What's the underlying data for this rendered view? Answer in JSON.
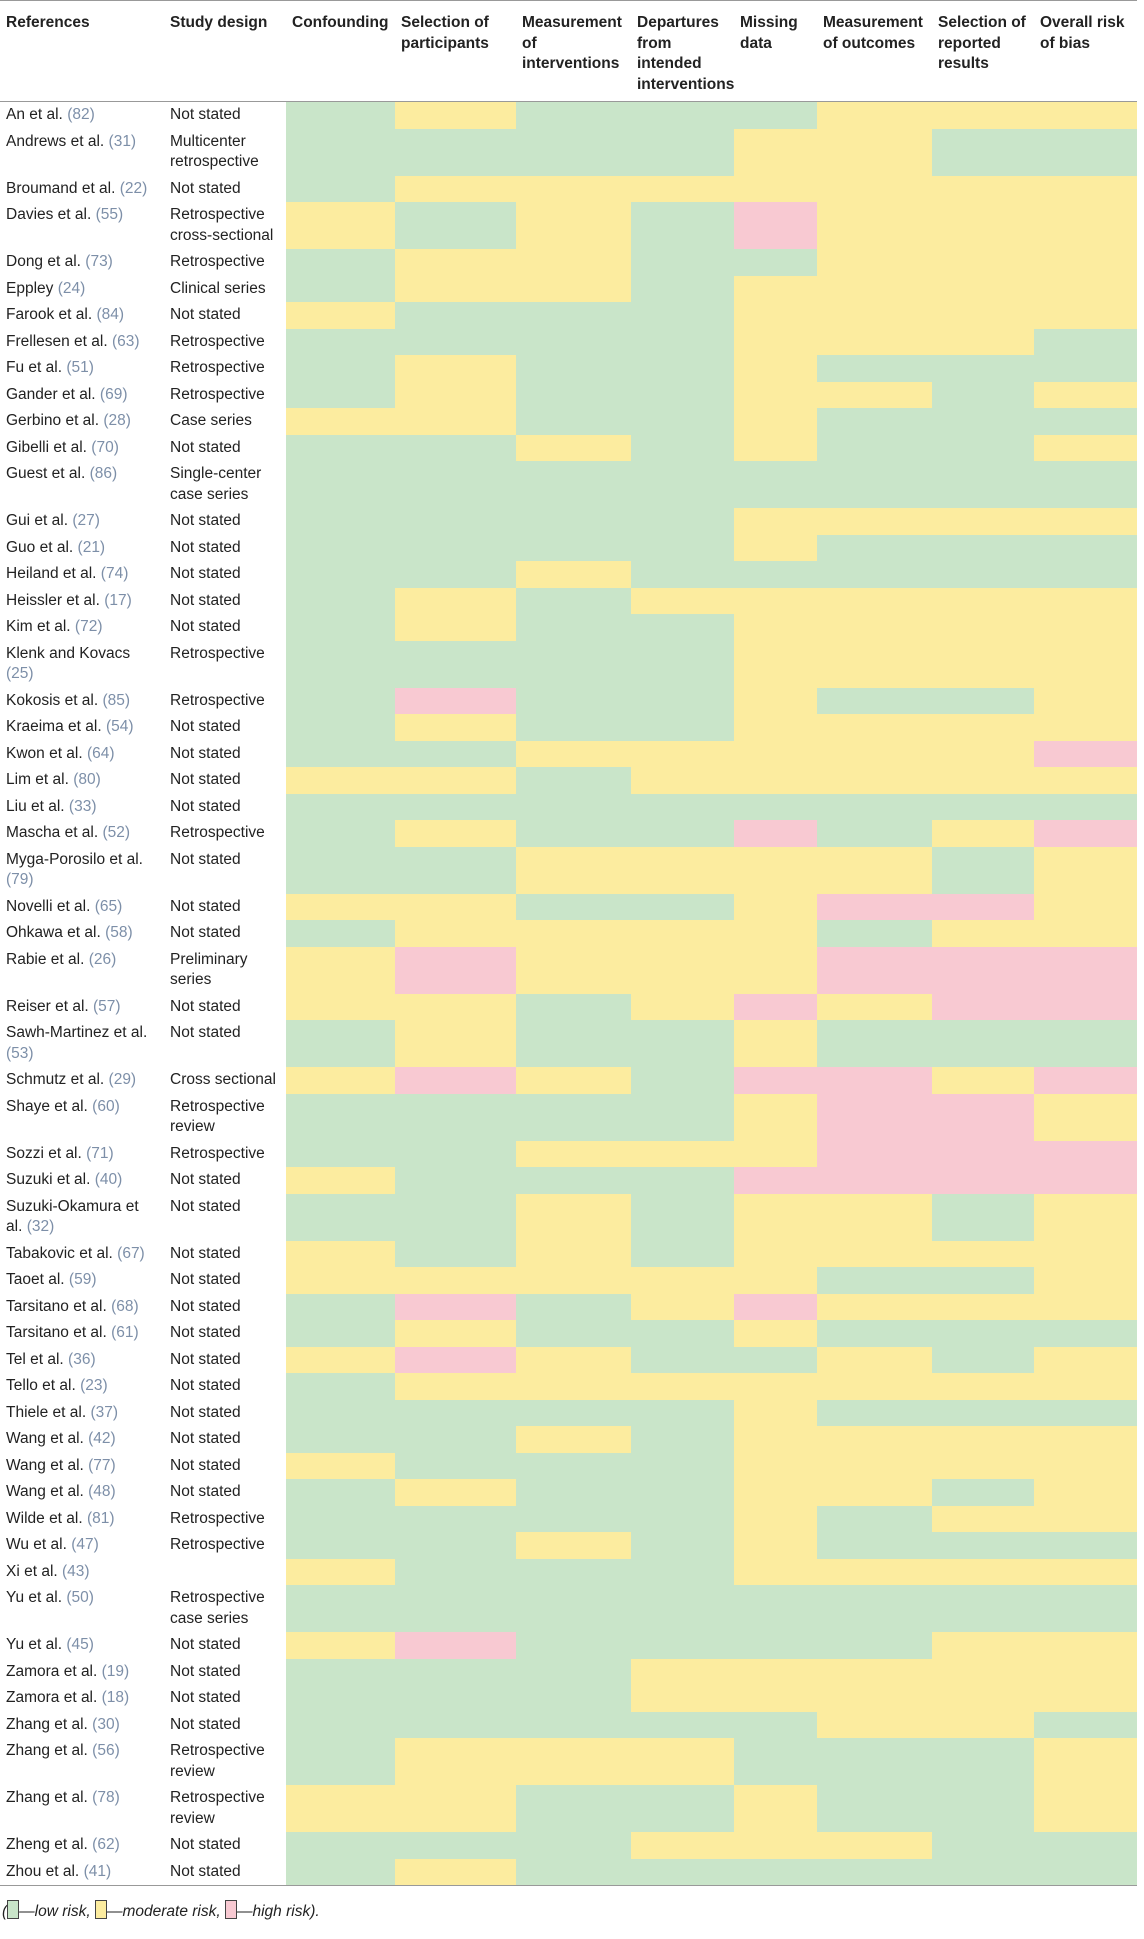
{
  "table": {
    "header": [
      "References",
      "Study design",
      "Confounding",
      "Selection of participants",
      "Measurement of interventions",
      "Departures from intended interventions",
      "Missing data",
      "Measurement of outcomes",
      "Selection of reported results",
      "Overall risk of bias"
    ],
    "risk_colors": [
      "#c9e5c9",
      "#fcec9f",
      "#f8c9d2"
    ],
    "rows": [
      {
        "ref": "An et al.",
        "cite": "(82)",
        "design": "Not stated",
        "risk": [
          0,
          1,
          0,
          0,
          0,
          1,
          1,
          1
        ]
      },
      {
        "ref": "Andrews et al.",
        "cite": "(31)",
        "design": "Multicenter retrospective",
        "risk": [
          0,
          0,
          0,
          0,
          1,
          1,
          0,
          0
        ]
      },
      {
        "ref": "Broumand et al.",
        "cite": "(22)",
        "design": "Not stated",
        "risk": [
          0,
          1,
          1,
          1,
          1,
          1,
          1,
          1
        ]
      },
      {
        "ref": "Davies et al.",
        "cite": "(55)",
        "design": "Retrospective cross-sectional",
        "risk": [
          1,
          0,
          1,
          0,
          2,
          1,
          1,
          1
        ]
      },
      {
        "ref": "Dong et al.",
        "cite": "(73)",
        "design": "Retrospective",
        "risk": [
          0,
          1,
          1,
          0,
          0,
          1,
          1,
          1
        ]
      },
      {
        "ref": "Eppley",
        "cite": "(24)",
        "design": "Clinical series",
        "risk": [
          0,
          1,
          1,
          0,
          1,
          1,
          1,
          1
        ]
      },
      {
        "ref": "Farook et al.",
        "cite": "(84)",
        "design": "Not stated",
        "risk": [
          1,
          0,
          0,
          0,
          1,
          1,
          1,
          1
        ]
      },
      {
        "ref": "Frellesen et al.",
        "cite": "(63)",
        "design": "Retrospective",
        "risk": [
          0,
          0,
          0,
          0,
          1,
          1,
          1,
          0
        ]
      },
      {
        "ref": "Fu et al.",
        "cite": "(51)",
        "design": "Retrospective",
        "risk": [
          0,
          1,
          0,
          0,
          1,
          0,
          0,
          0
        ]
      },
      {
        "ref": "Gander et al.",
        "cite": "(69)",
        "design": "Retrospective",
        "risk": [
          0,
          1,
          0,
          0,
          1,
          1,
          0,
          1
        ]
      },
      {
        "ref": "Gerbino et al.",
        "cite": "(28)",
        "design": "Case series",
        "risk": [
          1,
          1,
          0,
          0,
          1,
          0,
          0,
          0
        ]
      },
      {
        "ref": "Gibelli et al.",
        "cite": "(70)",
        "design": "Not stated",
        "risk": [
          0,
          0,
          1,
          0,
          1,
          0,
          0,
          1
        ]
      },
      {
        "ref": "Guest et al.",
        "cite": "(86)",
        "design": "Single-center case series",
        "risk": [
          0,
          0,
          0,
          0,
          0,
          0,
          0,
          0
        ]
      },
      {
        "ref": "Gui et al.",
        "cite": "(27)",
        "design": "Not stated",
        "risk": [
          0,
          0,
          0,
          0,
          1,
          1,
          1,
          1
        ]
      },
      {
        "ref": "Guo et al.",
        "cite": "(21)",
        "design": "Not stated",
        "risk": [
          0,
          0,
          0,
          0,
          1,
          0,
          0,
          0
        ]
      },
      {
        "ref": "Heiland et al.",
        "cite": "(74)",
        "design": "Not stated",
        "risk": [
          0,
          0,
          1,
          0,
          0,
          0,
          0,
          0
        ]
      },
      {
        "ref": "Heissler et al.",
        "cite": "(17)",
        "design": "Not stated",
        "risk": [
          0,
          1,
          0,
          1,
          1,
          1,
          1,
          1
        ]
      },
      {
        "ref": "Kim et al.",
        "cite": "(72)",
        "design": "Not stated",
        "risk": [
          0,
          1,
          0,
          0,
          1,
          1,
          1,
          1
        ]
      },
      {
        "ref": "Klenk and Kovacs",
        "cite": "(25)",
        "design": "Retrospective",
        "risk": [
          0,
          0,
          0,
          0,
          1,
          1,
          1,
          1
        ]
      },
      {
        "ref": "Kokosis et al.",
        "cite": "(85)",
        "design": "Retrospective",
        "risk": [
          0,
          2,
          0,
          0,
          1,
          0,
          0,
          1
        ]
      },
      {
        "ref": "Kraeima et al.",
        "cite": "(54)",
        "design": "Not stated",
        "risk": [
          0,
          1,
          0,
          0,
          1,
          1,
          1,
          1
        ]
      },
      {
        "ref": "Kwon et al.",
        "cite": "(64)",
        "design": "Not stated",
        "risk": [
          0,
          0,
          1,
          1,
          1,
          1,
          1,
          2
        ]
      },
      {
        "ref": "Lim et al.",
        "cite": "(80)",
        "design": "Not stated",
        "risk": [
          1,
          1,
          0,
          1,
          1,
          1,
          1,
          1
        ]
      },
      {
        "ref": "Liu et al.",
        "cite": "(33)",
        "design": "Not stated",
        "risk": [
          0,
          0,
          0,
          0,
          0,
          0,
          0,
          0
        ]
      },
      {
        "ref": "Mascha et al.",
        "cite": "(52)",
        "design": "Retrospective",
        "risk": [
          0,
          1,
          0,
          0,
          2,
          0,
          1,
          2
        ]
      },
      {
        "ref": "Myga-Porosilo et al.",
        "cite": "(79)",
        "design": "Not stated",
        "risk": [
          0,
          0,
          1,
          1,
          1,
          1,
          0,
          1
        ]
      },
      {
        "ref": "Novelli et al.",
        "cite": "(65)",
        "design": "Not stated",
        "risk": [
          1,
          1,
          0,
          0,
          1,
          2,
          2,
          1
        ]
      },
      {
        "ref": "Ohkawa et al.",
        "cite": "(58)",
        "design": "Not stated",
        "risk": [
          0,
          1,
          1,
          1,
          1,
          0,
          1,
          1
        ]
      },
      {
        "ref": "Rabie et al.",
        "cite": "(26)",
        "design": "Preliminary series",
        "risk": [
          1,
          2,
          1,
          1,
          1,
          2,
          2,
          2
        ]
      },
      {
        "ref": "Reiser et al.",
        "cite": "(57)",
        "design": "Not stated",
        "risk": [
          1,
          1,
          0,
          1,
          2,
          1,
          2,
          2
        ]
      },
      {
        "ref": "Sawh-Martinez et al.",
        "cite": "(53)",
        "design": "Not stated",
        "risk": [
          0,
          1,
          0,
          0,
          1,
          0,
          0,
          0
        ]
      },
      {
        "ref": "Schmutz et al.",
        "cite": "(29)",
        "design": "Cross sectional",
        "risk": [
          1,
          2,
          1,
          0,
          2,
          2,
          1,
          2
        ]
      },
      {
        "ref": "Shaye et al.",
        "cite": "(60)",
        "design": "Retrospective review",
        "risk": [
          0,
          0,
          0,
          0,
          1,
          2,
          2,
          1
        ]
      },
      {
        "ref": "Sozzi et al.",
        "cite": "(71)",
        "design": "Retrospective",
        "risk": [
          0,
          0,
          1,
          1,
          1,
          2,
          2,
          2
        ]
      },
      {
        "ref": "Suzuki et al.",
        "cite": "(40)",
        "design": "Not stated",
        "risk": [
          1,
          0,
          0,
          0,
          2,
          2,
          2,
          2
        ]
      },
      {
        "ref": "Suzuki-Okamura et al.",
        "cite": "(32)",
        "design": "Not stated",
        "risk": [
          0,
          0,
          1,
          0,
          1,
          1,
          0,
          1
        ]
      },
      {
        "ref": "Tabakovic et al.",
        "cite": "(67)",
        "design": "Not stated",
        "risk": [
          1,
          0,
          1,
          0,
          1,
          1,
          1,
          1
        ]
      },
      {
        "ref": "Taoet al.",
        "cite": "(59)",
        "design": "Not stated",
        "risk": [
          1,
          1,
          1,
          1,
          1,
          0,
          0,
          1
        ]
      },
      {
        "ref": "Tarsitano et al.",
        "cite": "(68)",
        "design": "Not stated",
        "risk": [
          0,
          2,
          0,
          1,
          2,
          1,
          1,
          1
        ]
      },
      {
        "ref": "Tarsitano et al.",
        "cite": "(61)",
        "design": "Not stated",
        "risk": [
          0,
          1,
          0,
          0,
          1,
          0,
          0,
          0
        ]
      },
      {
        "ref": "Tel et al.",
        "cite": "(36)",
        "design": "Not stated",
        "risk": [
          1,
          2,
          1,
          0,
          0,
          1,
          0,
          1
        ]
      },
      {
        "ref": "Tello et al.",
        "cite": "(23)",
        "design": "Not stated",
        "risk": [
          0,
          1,
          1,
          1,
          1,
          1,
          1,
          1
        ]
      },
      {
        "ref": "Thiele et al.",
        "cite": "(37)",
        "design": "Not stated",
        "risk": [
          0,
          0,
          0,
          0,
          1,
          0,
          0,
          0
        ]
      },
      {
        "ref": "Wang et al.",
        "cite": "(42)",
        "design": "Not stated",
        "risk": [
          0,
          0,
          1,
          0,
          1,
          1,
          1,
          1
        ]
      },
      {
        "ref": "Wang et al.",
        "cite": "(77)",
        "design": "Not stated",
        "risk": [
          1,
          0,
          0,
          0,
          1,
          1,
          1,
          1
        ]
      },
      {
        "ref": "Wang et al.",
        "cite": "(48)",
        "design": "Not stated",
        "risk": [
          0,
          1,
          0,
          0,
          1,
          1,
          0,
          1
        ]
      },
      {
        "ref": "Wilde et al.",
        "cite": "(81)",
        "design": "Retrospective",
        "risk": [
          0,
          0,
          0,
          0,
          1,
          0,
          1,
          1
        ]
      },
      {
        "ref": "Wu et al.",
        "cite": "(47)",
        "design": "Retrospective",
        "risk": [
          0,
          0,
          1,
          0,
          1,
          0,
          0,
          0
        ]
      },
      {
        "ref": "Xi et al.",
        "cite": "(43)",
        "design": "",
        "risk": [
          1,
          0,
          0,
          0,
          1,
          1,
          1,
          1
        ]
      },
      {
        "ref": "Yu et al.",
        "cite": "(50)",
        "design": "Retrospective case series",
        "risk": [
          0,
          0,
          0,
          0,
          0,
          0,
          0,
          0
        ]
      },
      {
        "ref": "Yu et al.",
        "cite": "(45)",
        "design": "Not stated",
        "risk": [
          1,
          2,
          0,
          0,
          0,
          0,
          1,
          1
        ]
      },
      {
        "ref": "Zamora et al.",
        "cite": "(19)",
        "design": "Not stated",
        "risk": [
          0,
          0,
          0,
          1,
          1,
          1,
          1,
          1
        ]
      },
      {
        "ref": "Zamora et al.",
        "cite": "(18)",
        "design": "Not stated",
        "risk": [
          0,
          0,
          0,
          1,
          1,
          1,
          1,
          1
        ]
      },
      {
        "ref": "Zhang et al.",
        "cite": "(30)",
        "design": "Not stated",
        "risk": [
          0,
          0,
          0,
          0,
          0,
          1,
          1,
          0
        ]
      },
      {
        "ref": "Zhang et al.",
        "cite": "(56)",
        "design": "Retrospective review",
        "risk": [
          0,
          1,
          1,
          1,
          0,
          0,
          0,
          1
        ]
      },
      {
        "ref": "Zhang et al.",
        "cite": "(78)",
        "design": "Retrospective review",
        "risk": [
          1,
          1,
          0,
          0,
          1,
          0,
          0,
          1
        ]
      },
      {
        "ref": "Zheng et al.",
        "cite": "(62)",
        "design": "Not stated",
        "risk": [
          0,
          0,
          0,
          1,
          1,
          1,
          0,
          0
        ]
      },
      {
        "ref": "Zhou et al.",
        "cite": "(41)",
        "design": "Not stated",
        "risk": [
          0,
          1,
          0,
          0,
          0,
          0,
          0,
          0
        ]
      }
    ]
  },
  "legend": {
    "open": "(",
    "items": [
      {
        "color": 0,
        "label": "—low risk, "
      },
      {
        "color": 1,
        "label": "—moderate risk, "
      },
      {
        "color": 2,
        "label": "—high risk)."
      }
    ]
  }
}
